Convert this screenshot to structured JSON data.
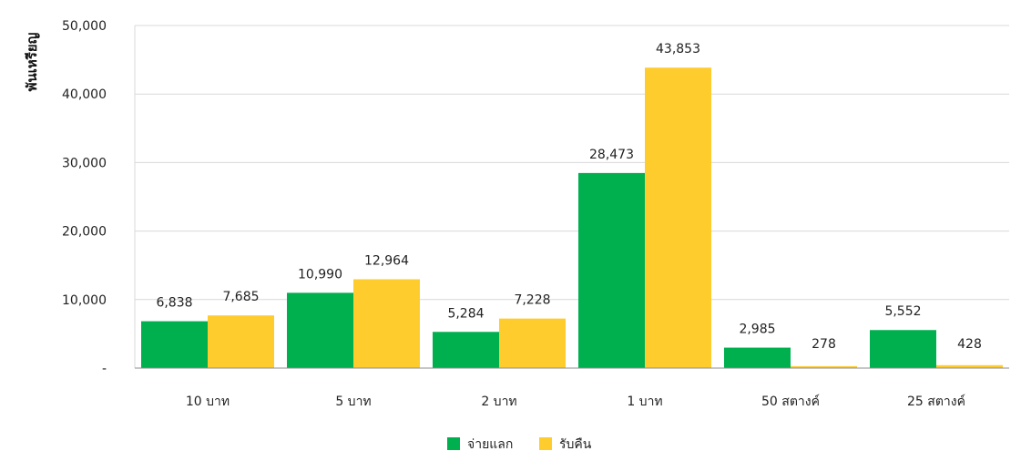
{
  "chart_data": {
    "type": "bar",
    "ylabel": "พันเหรียญ",
    "categories": [
      "10 บาท",
      "5 บาท",
      "2 บาท",
      "1 บาท",
      "50 สตางค์",
      "25 สตางค์"
    ],
    "series": [
      {
        "name": "จ่ายแลก",
        "color": "#00B04F",
        "values": [
          6838,
          10990,
          5284,
          28473,
          2985,
          5552
        ],
        "labels": [
          "6,838",
          "10,990",
          "5,284",
          "28,473",
          "2,985",
          "5,552"
        ]
      },
      {
        "name": "รับคืน",
        "color": "#FFCC2E",
        "values": [
          7685,
          12964,
          7228,
          43853,
          278,
          428
        ],
        "labels": [
          "7,685",
          "12,964",
          "7,228",
          "43,853",
          "278",
          "428"
        ]
      }
    ],
    "ylim": [
      0,
      50000
    ],
    "yticks": [
      0,
      10000,
      20000,
      30000,
      40000,
      50000
    ],
    "ytick_labels": [
      "-",
      "10,000",
      "20,000",
      "30,000",
      "40,000",
      "50,000"
    ],
    "grid": true,
    "legend": "bottom-center"
  }
}
